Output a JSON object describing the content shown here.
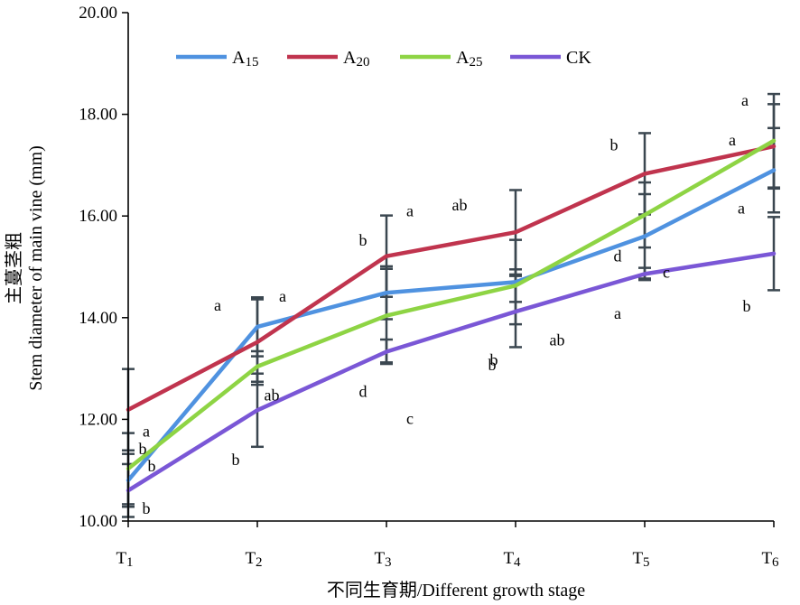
{
  "chart_data": {
    "type": "line",
    "xlabel": "不同生育期/Different growth stage",
    "ylabel_cn": "主蔓茎粗",
    "ylabel_en": "Stem diameter of main vine (mm)",
    "ylim": [
      10,
      20
    ],
    "yticks": [
      "10.00",
      "12.00",
      "14.00",
      "16.00",
      "18.00",
      "20.00"
    ],
    "categories": [
      {
        "main": "T",
        "sub": "1"
      },
      {
        "main": "T",
        "sub": "2"
      },
      {
        "main": "T",
        "sub": "3"
      },
      {
        "main": "T",
        "sub": "4"
      },
      {
        "main": "T",
        "sub": "5"
      },
      {
        "main": "T",
        "sub": "6"
      }
    ],
    "legend_position": "top",
    "grid": false,
    "series": [
      {
        "name": "A15",
        "label_main": "A",
        "label_sub": "15",
        "color": "#4f92e0",
        "values": [
          10.8,
          13.82,
          14.49,
          14.7,
          15.6,
          16.9
        ],
        "errors": [
          0.52,
          0.58,
          0.52,
          0.83,
          0.83,
          0.83
        ],
        "letters": [
          "b",
          "a",
          "b",
          "b",
          "d",
          "a"
        ]
      },
      {
        "name": "A20",
        "label_main": "A",
        "label_sub": "20",
        "color": "#c0344e",
        "values": [
          12.19,
          13.52,
          15.21,
          15.68,
          16.83,
          17.37
        ],
        "errors": [
          0.8,
          0.84,
          0.8,
          0.83,
          0.8,
          0.83
        ],
        "letters": [
          "a",
          "a",
          "a",
          "ab",
          "b",
          "a"
        ]
      },
      {
        "name": "A25",
        "label_main": "A",
        "label_sub": "25",
        "color": "#8ed444",
        "values": [
          11.03,
          13.04,
          14.04,
          14.63,
          16.02,
          17.48
        ],
        "errors": [
          0.7,
          0.3,
          0.92,
          0.32,
          0.64,
          0.92
        ],
        "letters": [
          "b",
          "b",
          "d",
          "ab",
          "a",
          "a"
        ]
      },
      {
        "name": "CK",
        "label_main": "CK",
        "label_sub": "",
        "color": "#7a57d6",
        "values": [
          10.6,
          12.18,
          13.33,
          14.12,
          14.86,
          15.26
        ],
        "errors": [
          0.52,
          0.72,
          0.24,
          0.7,
          0.12,
          0.72
        ],
        "letters": [
          "b",
          "ab",
          "c",
          "b",
          "c",
          "b"
        ]
      }
    ]
  }
}
